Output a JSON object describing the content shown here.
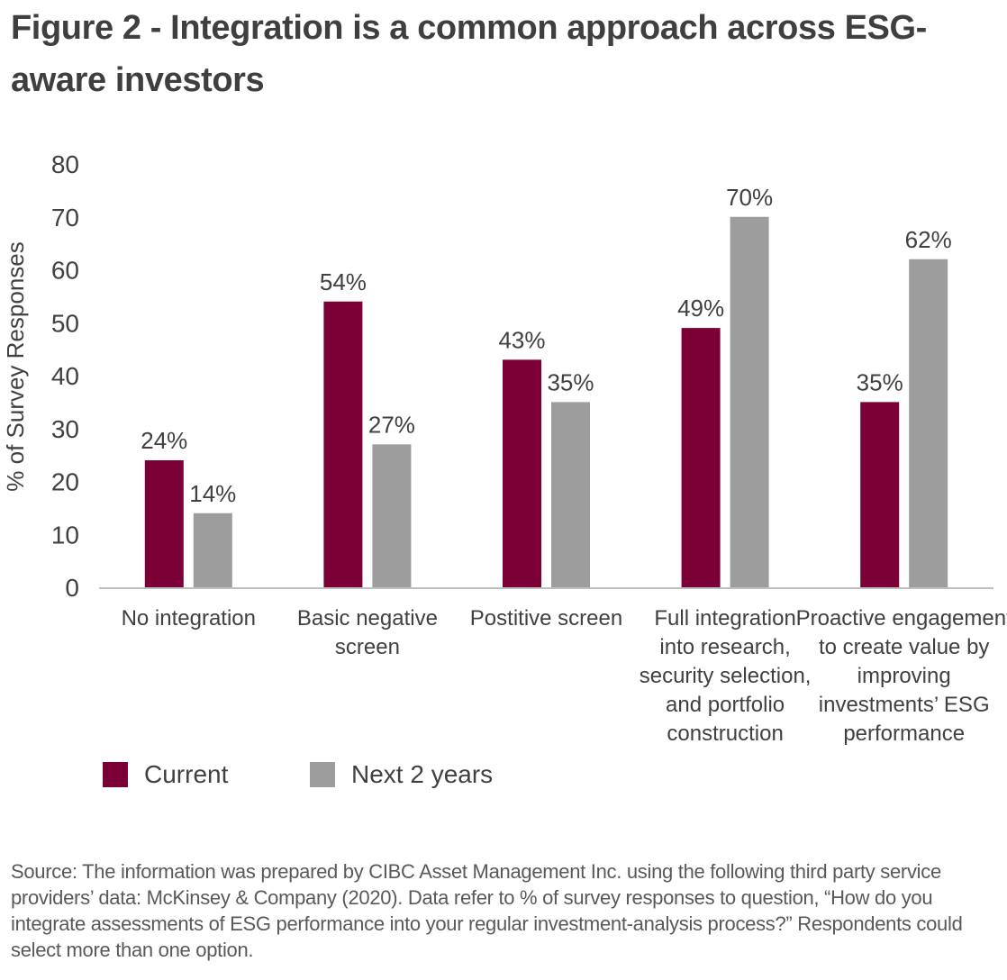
{
  "title": "Figure 2 - Integration is a common approach across ESG-aware investors",
  "source": "Source: The information was prepared by CIBC Asset Management Inc. using the following third party service providers’ data: McKinsey & Company (2020). Data refer to % of survey responses to question, “How do you integrate assessments of ESG performance into your regular investment-analysis process?” Respondents could select more than one option.",
  "colors": {
    "current": "#7b0036",
    "next": "#9d9d9d",
    "text": "#404040",
    "axis": "#bfbfbf"
  },
  "chart_data": {
    "type": "bar",
    "ylabel": "% of Survey Responses",
    "ylim": [
      0,
      80
    ],
    "yticks": [
      0,
      10,
      20,
      30,
      40,
      50,
      60,
      70,
      80
    ],
    "grid": false,
    "legend_position": "bottom-left",
    "categories": [
      [
        "No integration"
      ],
      [
        "Basic negative",
        "screen"
      ],
      [
        "Postitive screen"
      ],
      [
        "Full integration",
        "into research,",
        "security selection,",
        "and portfolio",
        "construction"
      ],
      [
        "Proactive engagement",
        "to create value by",
        "improving",
        "investments’ ESG",
        "performance"
      ]
    ],
    "series": [
      {
        "name": "Current",
        "values": [
          24,
          54,
          43,
          49,
          35
        ],
        "labels": [
          "24%",
          "54%",
          "43%",
          "49%",
          "35%"
        ]
      },
      {
        "name": "Next 2 years",
        "values": [
          14,
          27,
          35,
          70,
          62
        ],
        "labels": [
          "14%",
          "27%",
          "35%",
          "70%",
          "62%"
        ]
      }
    ]
  }
}
